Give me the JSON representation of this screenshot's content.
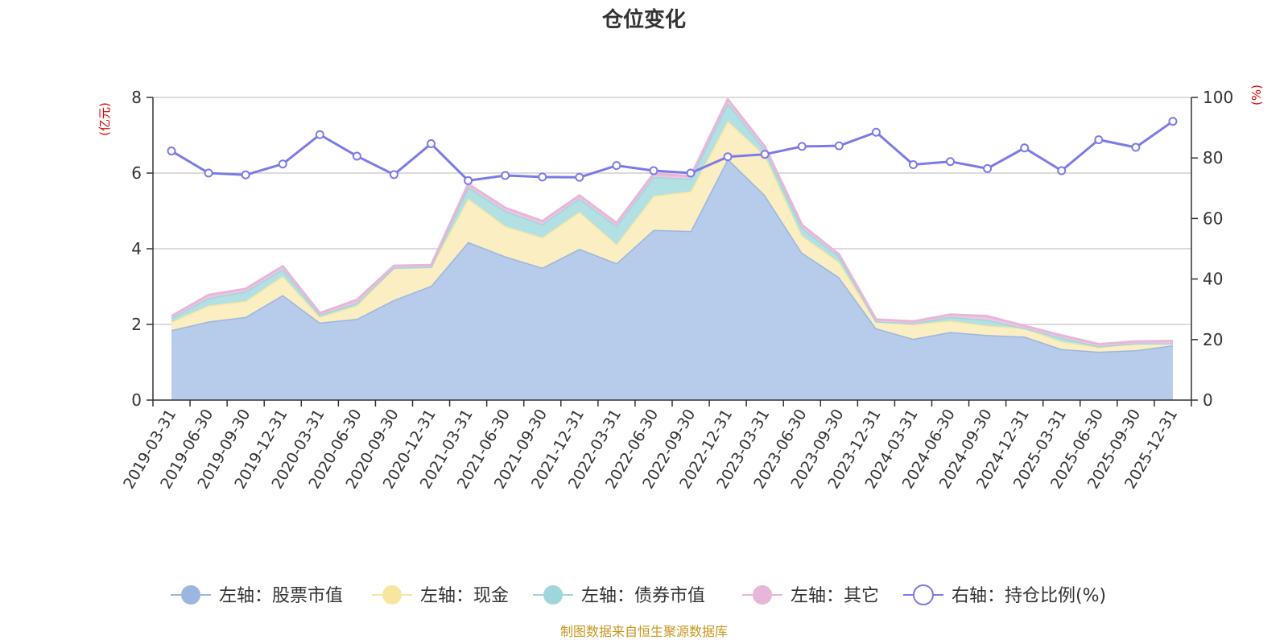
{
  "chart_data": {
    "type": "area",
    "title": "仓位变化",
    "left_unit": "(亿元)",
    "right_unit": "(%)",
    "source": "制图数据来自恒生聚源数据库",
    "left_axis": {
      "min": 0,
      "max": 8,
      "ticks": [
        "0",
        "2",
        "4",
        "6",
        "8"
      ]
    },
    "right_axis": {
      "min": 0,
      "max": 100,
      "ticks": [
        "0",
        "20",
        "40",
        "60",
        "80",
        "100"
      ]
    },
    "categories": [
      "2019-03-31",
      "2019-06-30",
      "2019-09-30",
      "2019-12-31",
      "2020-03-31",
      "2020-06-30",
      "2020-09-30",
      "2020-12-31",
      "2021-03-31",
      "2021-06-30",
      "2021-09-30",
      "2021-12-31",
      "2022-03-31",
      "2022-06-30",
      "2022-09-30",
      "2022-12-31",
      "2023-03-31",
      "2023-06-30",
      "2023-09-30",
      "2023-12-31",
      "2024-03-31",
      "2024-06-30",
      "2024-09-30",
      "2024-12-31",
      "2025-03-31",
      "2025-06-30",
      "2025-09-30",
      "2025-12-31"
    ],
    "series": [
      {
        "name": "左轴：股票市值",
        "axis": "left",
        "stack": true,
        "line": "#9bb6e0",
        "fill": "#b7cbea",
        "values": [
          1.85,
          2.08,
          2.2,
          2.78,
          2.05,
          2.15,
          2.65,
          3.02,
          4.18,
          3.8,
          3.5,
          4.0,
          3.62,
          4.5,
          4.47,
          6.38,
          5.42,
          3.9,
          3.25,
          1.9,
          1.62,
          1.8,
          1.72,
          1.68,
          1.35,
          1.28,
          1.32,
          1.45
        ]
      },
      {
        "name": "左轴：现金",
        "axis": "left",
        "stack": true,
        "line": "#f6e6a0",
        "fill": "#fbeec3",
        "values": [
          0.22,
          0.42,
          0.42,
          0.5,
          0.15,
          0.35,
          0.85,
          0.5,
          1.15,
          0.8,
          0.8,
          0.98,
          0.5,
          0.9,
          1.05,
          1.0,
          1.05,
          0.45,
          0.4,
          0.18,
          0.38,
          0.3,
          0.25,
          0.22,
          0.2,
          0.12,
          0.18,
          0.05
        ]
      },
      {
        "name": "左轴：债券市值",
        "axis": "left",
        "stack": true,
        "line": "#9fd6dc",
        "fill": "#b2e0e3",
        "values": [
          0.1,
          0.2,
          0.25,
          0.18,
          0.05,
          0.07,
          0.0,
          0.0,
          0.3,
          0.4,
          0.35,
          0.35,
          0.48,
          0.5,
          0.33,
          0.47,
          0.15,
          0.2,
          0.15,
          0.0,
          0.03,
          0.1,
          0.15,
          0.0,
          0.1,
          0.02,
          0.0,
          0.0
        ]
      },
      {
        "name": "左轴：其它",
        "axis": "left",
        "stack": true,
        "line": "#e8b6d8",
        "fill": "#efc7e2",
        "values": [
          0.05,
          0.08,
          0.07,
          0.08,
          0.05,
          0.08,
          0.05,
          0.05,
          0.08,
          0.08,
          0.08,
          0.08,
          0.08,
          0.08,
          0.07,
          0.1,
          0.08,
          0.08,
          0.05,
          0.05,
          0.05,
          0.06,
          0.1,
          0.06,
          0.06,
          0.06,
          0.05,
          0.06
        ]
      },
      {
        "name": "右轴：持仓比例(%)",
        "axis": "right",
        "type": "line",
        "line": "#7b7be8",
        "values": [
          82.3,
          75.0,
          74.4,
          78.0,
          87.7,
          80.6,
          74.5,
          84.7,
          72.5,
          74.2,
          73.7,
          73.6,
          77.5,
          75.8,
          75.0,
          80.4,
          81.2,
          83.8,
          84.0,
          88.5,
          77.8,
          78.8,
          76.5,
          83.3,
          75.8,
          86.0,
          83.5,
          92.1
        ]
      }
    ]
  }
}
